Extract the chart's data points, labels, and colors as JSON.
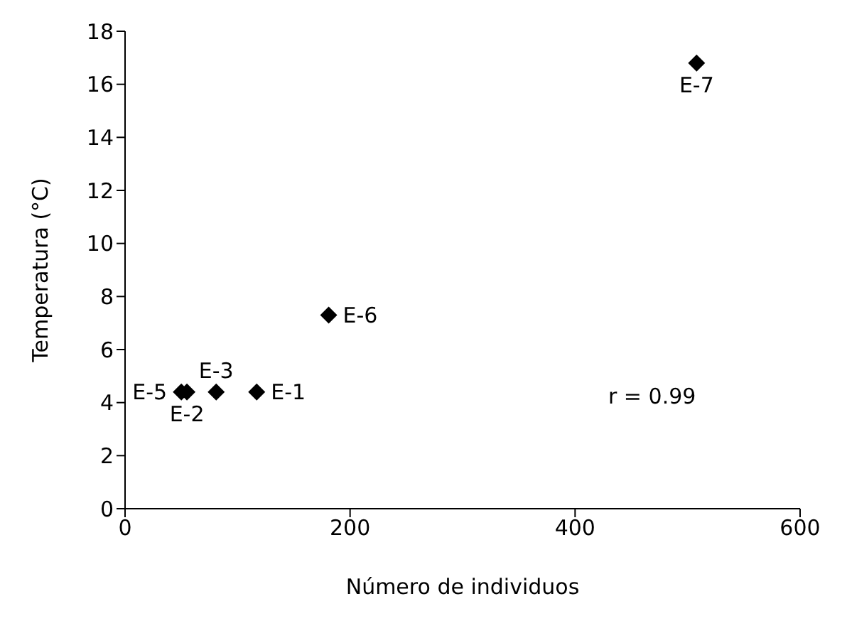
{
  "chart_data": {
    "type": "scatter",
    "xlabel": "Número de individuos",
    "ylabel": "Temperatura (°C)",
    "x": [
      117,
      55,
      81,
      50,
      181,
      508
    ],
    "series": [
      {
        "color": "#000000",
        "values": [
          4.4,
          4.4,
          4.4,
          4.4,
          7.3,
          16.8
        ]
      }
    ],
    "xlim": [
      0,
      600
    ],
    "xticks": [
      0,
      200,
      400,
      600
    ],
    "ylim": [
      0,
      18
    ],
    "yticks": [
      0,
      2,
      4,
      6,
      8,
      10,
      12,
      14,
      16,
      18
    ],
    "marker": "diamond",
    "grid": false,
    "legend": false,
    "annotations": [
      {
        "text": "E-1",
        "x": 117,
        "y": 4.4
      },
      {
        "text": "E-2",
        "x": 55,
        "y": 4.4
      },
      {
        "text": "E-3",
        "x": 81,
        "y": 4.4
      },
      {
        "text": "E-5",
        "x": 50,
        "y": 4.4
      },
      {
        "text": "E-6",
        "x": 181,
        "y": 7.3
      },
      {
        "text": "E-7",
        "x": 508,
        "y": 16.8
      },
      "r = 0.99"
    ]
  }
}
